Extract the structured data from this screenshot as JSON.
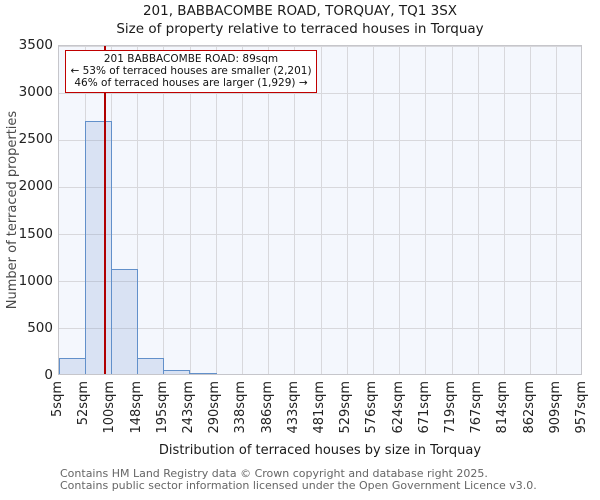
{
  "title": "201, BABBACOMBE ROAD, TORQUAY, TQ1 3SX",
  "subtitle": "Size of property relative to terraced houses in Torquay",
  "annotation": {
    "line1": "201 BABBACOMBE ROAD: 89sqm",
    "line2": "← 53% of terraced houses are smaller (2,201)",
    "line3": "46% of terraced houses are larger (1,929) →"
  },
  "chart_data": {
    "type": "bar",
    "title": "201, BABBACOMBE ROAD, TORQUAY, TQ1 3SX — Size of property relative to terraced houses in Torquay",
    "xlabel": "Distribution of terraced houses by size in Torquay",
    "ylabel": "Number of terraced properties",
    "x_tick_labels": [
      "5sqm",
      "52sqm",
      "100sqm",
      "148sqm",
      "195sqm",
      "243sqm",
      "290sqm",
      "338sqm",
      "386sqm",
      "433sqm",
      "481sqm",
      "529sqm",
      "576sqm",
      "624sqm",
      "671sqm",
      "719sqm",
      "767sqm",
      "814sqm",
      "862sqm",
      "909sqm",
      "957sqm"
    ],
    "bin_edges_sqm": [
      5,
      52,
      100,
      148,
      195,
      243,
      290,
      338,
      386,
      433,
      481,
      529,
      576,
      624,
      671,
      719,
      767,
      814,
      862,
      909,
      957
    ],
    "values": [
      170,
      2680,
      1110,
      170,
      45,
      15,
      0,
      0,
      0,
      0,
      0,
      0,
      0,
      0,
      0,
      0,
      0,
      0,
      0,
      0
    ],
    "y_ticks": [
      0,
      500,
      1000,
      1500,
      2000,
      2500,
      3000,
      3500
    ],
    "ylim": [
      0,
      3500
    ],
    "xlim_sqm": [
      5,
      957
    ],
    "marker_sqm": 89,
    "grid": true,
    "legend": null,
    "colors": {
      "bar_fill": "rgba(125,155,210,0.22)",
      "bar_border": "#6290ca",
      "marker_line": "#b00000",
      "annotation_border": "#c00000",
      "plot_background": "#f4f7fd",
      "gridline": "#d8d8dc"
    }
  },
  "footer": {
    "line1": "Contains HM Land Registry data © Crown copyright and database right 2025.",
    "line2": "Contains public sector information licensed under the Open Government Licence v3.0."
  }
}
